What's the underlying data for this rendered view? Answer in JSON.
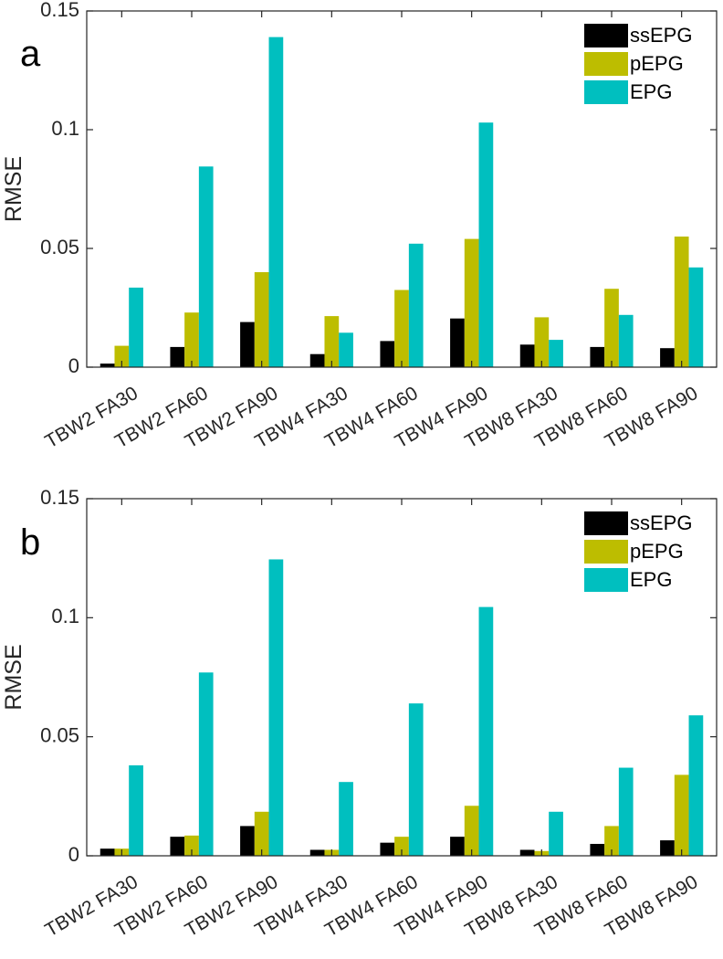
{
  "chart_data": [
    {
      "panel": "a",
      "type": "bar",
      "ylabel": "RMSE",
      "ylim": [
        0,
        0.15
      ],
      "yticks": [
        "0",
        "0.05",
        "0.1",
        "0.15"
      ],
      "categories": [
        "TBW2 FA30",
        "TBW2 FA60",
        "TBW2 FA90",
        "TBW4 FA30",
        "TBW4 FA60",
        "TBW4 FA90",
        "TBW8 FA30",
        "TBW8 FA60",
        "TBW8 FA90"
      ],
      "series": [
        {
          "name": "ssEPG",
          "color": "#000000",
          "values": [
            0.0015,
            0.0085,
            0.019,
            0.0055,
            0.011,
            0.0205,
            0.0095,
            0.0085,
            0.008
          ]
        },
        {
          "name": "pEPG",
          "color": "#bdbd00",
          "values": [
            0.009,
            0.023,
            0.04,
            0.0215,
            0.0325,
            0.054,
            0.021,
            0.033,
            0.055
          ]
        },
        {
          "name": "EPG",
          "color": "#00bfbf",
          "values": [
            0.0335,
            0.0845,
            0.139,
            0.0145,
            0.052,
            0.103,
            0.0115,
            0.022,
            0.042
          ]
        }
      ],
      "legend_position": "top-right"
    },
    {
      "panel": "b",
      "type": "bar",
      "ylabel": "RMSE",
      "ylim": [
        0,
        0.15
      ],
      "yticks": [
        "0",
        "0.05",
        "0.1",
        "0.15"
      ],
      "categories": [
        "TBW2 FA30",
        "TBW2 FA60",
        "TBW2 FA90",
        "TBW4 FA30",
        "TBW4 FA60",
        "TBW4 FA90",
        "TBW8 FA30",
        "TBW8 FA60",
        "TBW8 FA90"
      ],
      "series": [
        {
          "name": "ssEPG",
          "color": "#000000",
          "values": [
            0.003,
            0.008,
            0.0125,
            0.0025,
            0.0055,
            0.008,
            0.0025,
            0.005,
            0.0065
          ]
        },
        {
          "name": "pEPG",
          "color": "#bdbd00",
          "values": [
            0.003,
            0.0085,
            0.0185,
            0.0025,
            0.008,
            0.021,
            0.002,
            0.0125,
            0.034
          ]
        },
        {
          "name": "EPG",
          "color": "#00bfbf",
          "values": [
            0.038,
            0.077,
            0.1245,
            0.031,
            0.064,
            0.1045,
            0.0185,
            0.037,
            0.059
          ]
        }
      ],
      "legend_position": "top-right"
    }
  ]
}
